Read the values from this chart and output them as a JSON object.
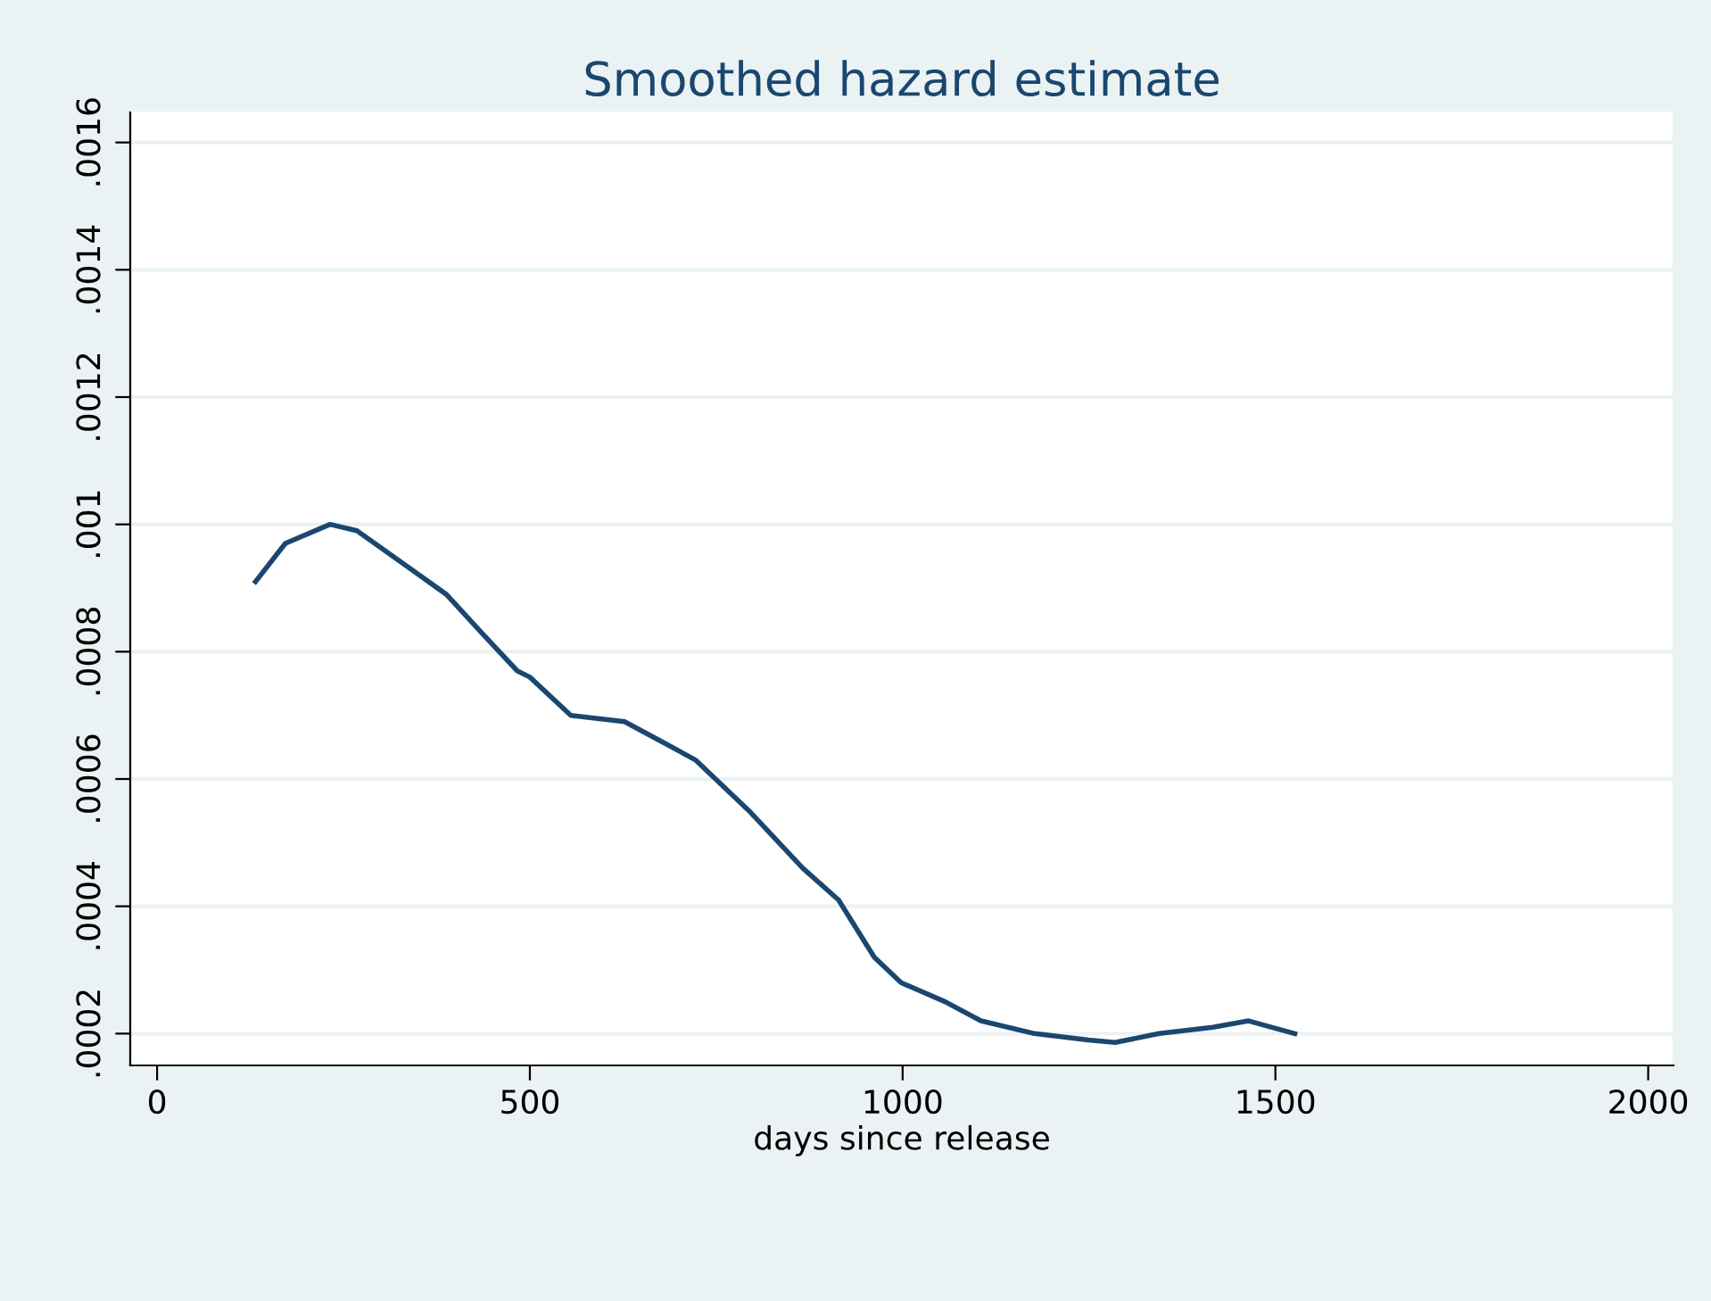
{
  "chart_data": {
    "type": "line",
    "title": "Smoothed hazard estimate",
    "xlabel": "days since release",
    "x": [
      132,
      172,
      232,
      268,
      340,
      388,
      435,
      483,
      500,
      555,
      627,
      675,
      722,
      794,
      866,
      914,
      962,
      998,
      1057,
      1105,
      1177,
      1249,
      1285,
      1344,
      1416,
      1464,
      1526
    ],
    "series": [
      {
        "color": "#1a476f",
        "values": [
          0.00091,
          0.00097,
          0.001,
          0.00099,
          0.00093,
          0.00089,
          0.00083,
          0.00077,
          0.00076,
          0.0007,
          0.00069,
          0.00066,
          0.00063,
          0.00055,
          0.00046,
          0.00041,
          0.00032,
          0.00028,
          0.00025,
          0.00022,
          0.0002,
          0.00019,
          0.000186,
          0.0002,
          0.00021,
          0.00022,
          0.0002
        ]
      }
    ],
    "xlim": [
      -36,
      2034
    ],
    "xticks": [
      0,
      500,
      1000,
      1500,
      2000
    ],
    "ylim": [
      0.00015,
      0.00165
    ],
    "yticks": [
      {
        "value": 0.0002,
        "label": ".0002"
      },
      {
        "value": 0.0004,
        "label": ".0004"
      },
      {
        "value": 0.0006,
        "label": ".0006"
      },
      {
        "value": 0.0008,
        "label": ".0008"
      },
      {
        "value": 0.001,
        "label": ".001"
      },
      {
        "value": 0.0012,
        "label": ".0012"
      },
      {
        "value": 0.0014,
        "label": ".0014"
      },
      {
        "value": 0.0016,
        "label": ".0016"
      }
    ],
    "grid": "y",
    "legend": false,
    "marker": "none",
    "line_style": "solid"
  }
}
